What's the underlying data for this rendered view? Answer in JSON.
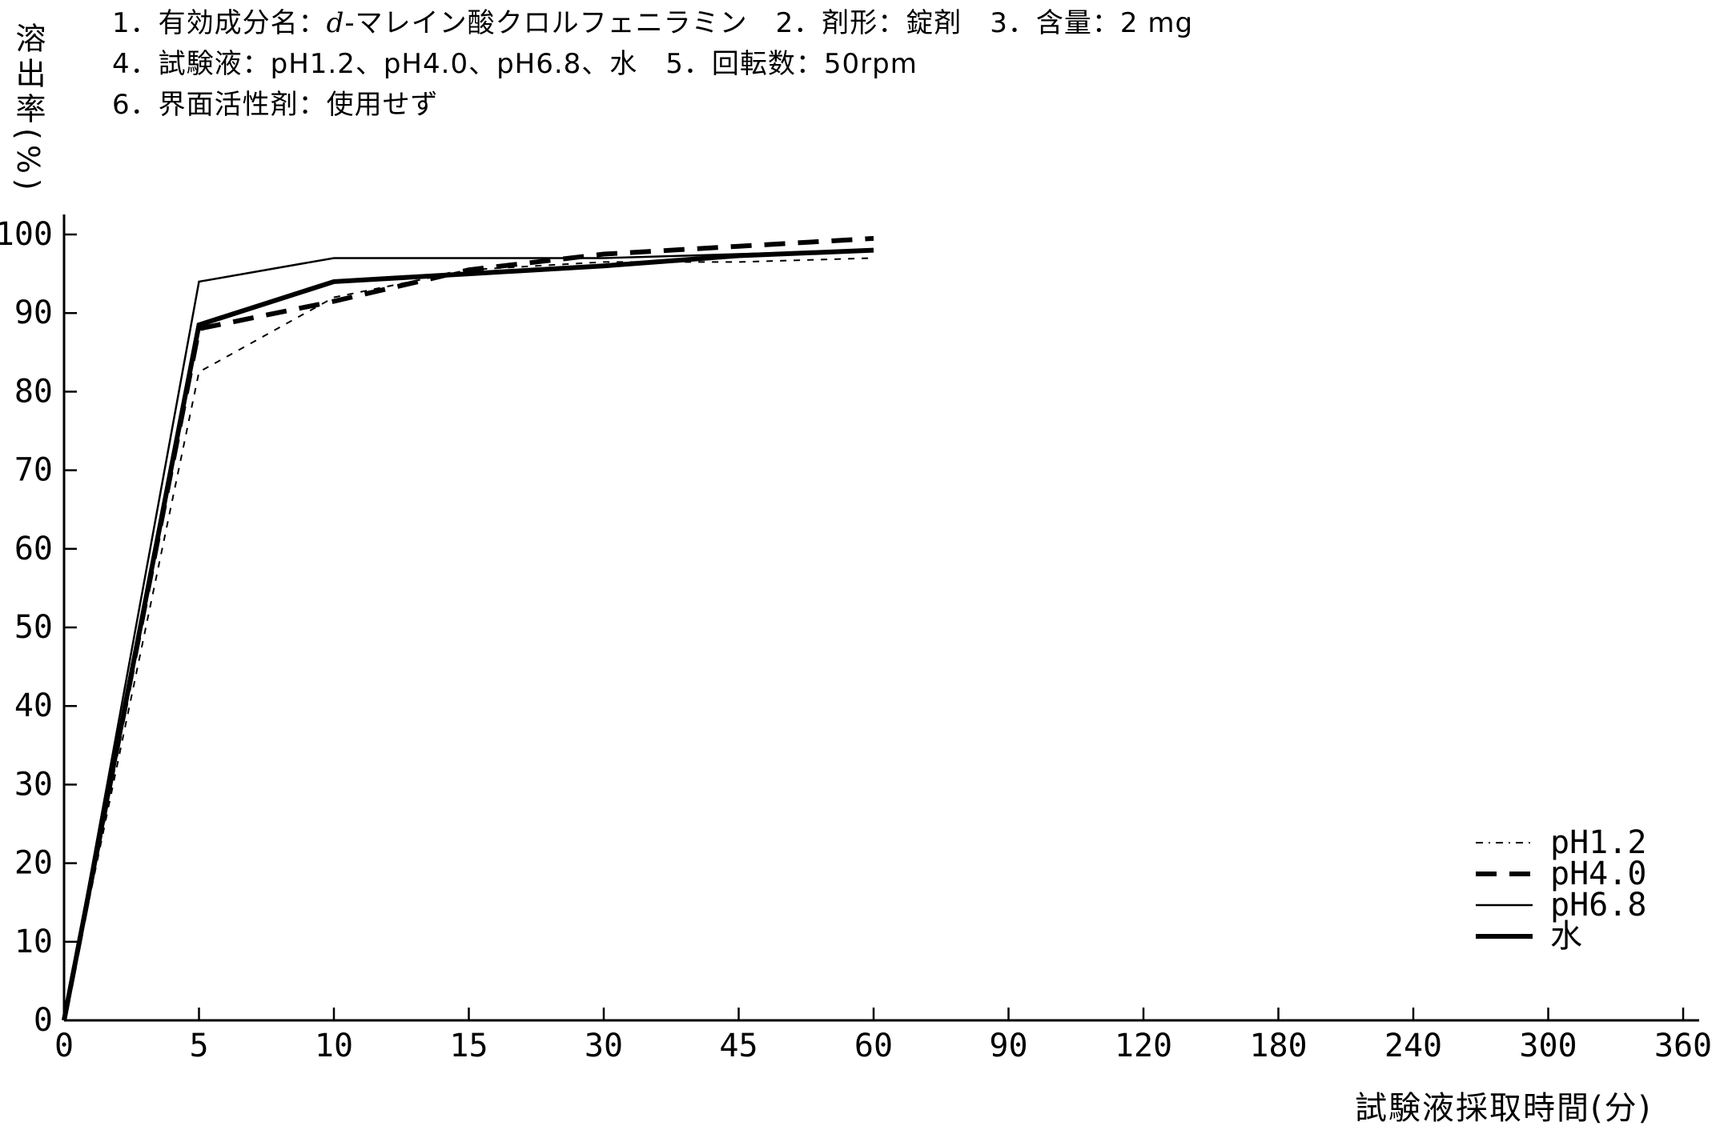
{
  "header": {
    "line1_pre": "1．有効成分名：",
    "line1_italic": "d",
    "line1_post": "-マレイン酸クロルフェニラミン　2．剤形：錠剤　3．含量：2 mg",
    "line2": "4．試験液：pH1.2、pH4.0、pH6.8、水　5．回転数：50rpm",
    "line3": "6．界面活性剤：使用せず"
  },
  "chart_data": {
    "type": "line",
    "title": "",
    "xlabel": "試験液採取時間(分)",
    "ylabel": "溶出率(%)",
    "x_categories": [
      0,
      5,
      10,
      15,
      30,
      45,
      60,
      90,
      120,
      180,
      240,
      300,
      360
    ],
    "x_axis_note": "category axis - ticks equally spaced regardless of minute value",
    "ylim": [
      0,
      100
    ],
    "y_ticks": [
      0,
      10,
      20,
      30,
      40,
      50,
      60,
      70,
      80,
      90,
      100
    ],
    "grid": false,
    "legend_position": "right-middle",
    "sample_times_min": [
      0,
      5,
      10,
      15,
      30,
      45,
      60
    ],
    "series": [
      {
        "name": "pH1.2",
        "line_style": "fine-dashed",
        "values": [
          0,
          82.5,
          92,
          95.5,
          96.5,
          96.5,
          97
        ]
      },
      {
        "name": "pH4.0",
        "line_style": "bold-dashed",
        "values": [
          0,
          88,
          91.5,
          95.5,
          97.5,
          98.5,
          99.5
        ]
      },
      {
        "name": "pH6.8",
        "line_style": "thin-solid",
        "values": [
          0,
          94,
          97,
          97,
          97,
          97.5,
          98
        ]
      },
      {
        "name": "水",
        "line_style": "bold-solid",
        "values": [
          0,
          88.5,
          94,
          95,
          96,
          97.3,
          98
        ]
      }
    ],
    "legend": [
      "pH1.2",
      "pH4.0",
      "pH6.8",
      "水"
    ]
  },
  "colors": {
    "ink": "#000000",
    "paper": "#ffffff"
  }
}
